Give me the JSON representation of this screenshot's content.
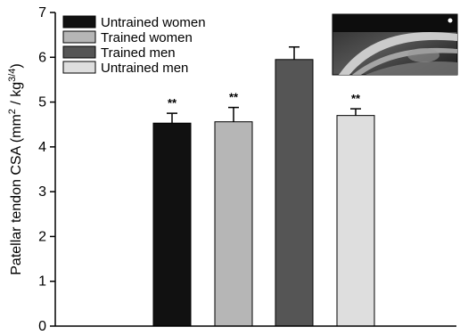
{
  "chart_data": {
    "type": "bar",
    "ylabel_main": "Patellar tendon CSA (mm",
    "ylabel_sup1": "2",
    "ylabel_mid": " / kg",
    "ylabel_sup2": "3/4",
    "ylabel_end": ")",
    "ylim": [
      0,
      7
    ],
    "yticks": [
      "0",
      "1",
      "2",
      "3",
      "4",
      "5",
      "6",
      "7"
    ],
    "grid": false,
    "legend_position": "top-left",
    "categories": [
      "Untrained women",
      "Trained women",
      "Trained men",
      "Untrained men"
    ],
    "values": [
      4.53,
      4.56,
      5.95,
      4.7
    ],
    "errors": [
      0.22,
      0.32,
      0.28,
      0.15
    ],
    "significance": [
      "**",
      "**",
      "",
      "**"
    ],
    "colors": [
      "#111111",
      "#b6b6b6",
      "#555555",
      "#dedede"
    ],
    "inset_image": "ultrasound-image"
  }
}
